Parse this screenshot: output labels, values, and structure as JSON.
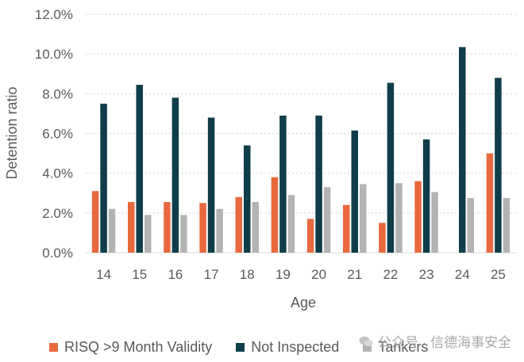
{
  "chart_data": {
    "type": "bar",
    "title": "",
    "xlabel": "Age",
    "ylabel": "Detention ratio",
    "ylim": [
      0,
      12
    ],
    "yticks": [
      "0.0%",
      "2.0%",
      "4.0%",
      "6.0%",
      "8.0%",
      "10.0%",
      "12.0%"
    ],
    "grid": true,
    "legend_position": "bottom",
    "categories": [
      "14",
      "15",
      "16",
      "17",
      "18",
      "19",
      "20",
      "21",
      "22",
      "23",
      "24",
      "25"
    ],
    "series": [
      {
        "name": "RISQ >9 Month Validity",
        "color": "#e8693e",
        "values": [
          3.1,
          2.55,
          2.55,
          2.5,
          2.8,
          3.8,
          1.7,
          2.4,
          1.5,
          3.6,
          0,
          5.0
        ]
      },
      {
        "name": "Not Inspected",
        "color": "#0f3d4a",
        "values": [
          7.5,
          8.45,
          7.8,
          6.8,
          5.4,
          6.9,
          6.9,
          6.15,
          8.55,
          5.7,
          10.35,
          8.8
        ]
      },
      {
        "name": "Tankers",
        "color": "#b3b3b3",
        "values": [
          2.2,
          1.9,
          1.9,
          2.2,
          2.55,
          2.9,
          3.3,
          3.45,
          3.5,
          3.05,
          2.75,
          2.75
        ]
      }
    ]
  },
  "watermark": {
    "text": "公众号 · 信德海事安全",
    "icon": "wechat-icon"
  }
}
